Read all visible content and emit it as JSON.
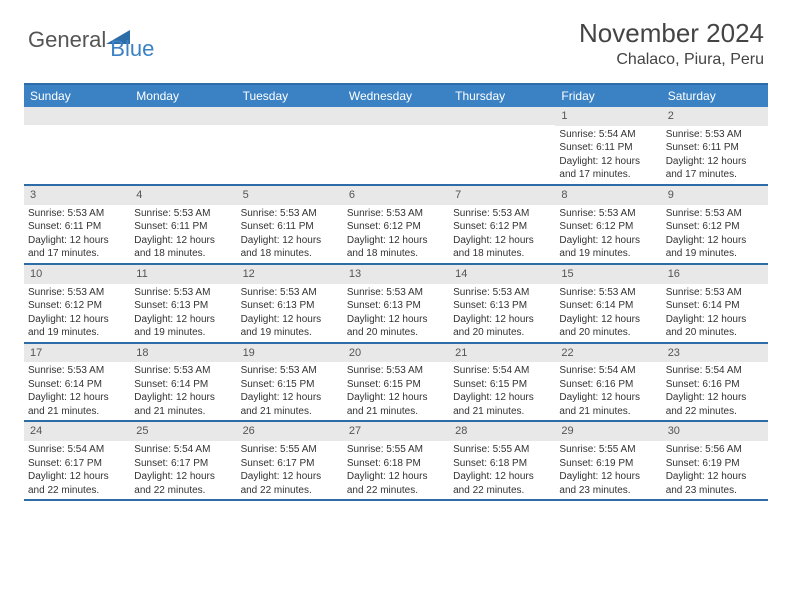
{
  "brand": {
    "part1": "General",
    "part2": "Blue"
  },
  "title": "November 2024",
  "location": "Chalaco, Piura, Peru",
  "colors": {
    "header_blue": "#3b82c4",
    "border_blue": "#2e6ca8",
    "daynum_bg": "#e8e8e8",
    "text": "#333333",
    "title_text": "#444444",
    "background": "#ffffff"
  },
  "dow": [
    "Sunday",
    "Monday",
    "Tuesday",
    "Wednesday",
    "Thursday",
    "Friday",
    "Saturday"
  ],
  "weeks": [
    [
      null,
      null,
      null,
      null,
      null,
      {
        "n": "1",
        "sr": "5:54 AM",
        "ss": "6:11 PM",
        "dl": "12 hours and 17 minutes."
      },
      {
        "n": "2",
        "sr": "5:53 AM",
        "ss": "6:11 PM",
        "dl": "12 hours and 17 minutes."
      }
    ],
    [
      {
        "n": "3",
        "sr": "5:53 AM",
        "ss": "6:11 PM",
        "dl": "12 hours and 17 minutes."
      },
      {
        "n": "4",
        "sr": "5:53 AM",
        "ss": "6:11 PM",
        "dl": "12 hours and 18 minutes."
      },
      {
        "n": "5",
        "sr": "5:53 AM",
        "ss": "6:11 PM",
        "dl": "12 hours and 18 minutes."
      },
      {
        "n": "6",
        "sr": "5:53 AM",
        "ss": "6:12 PM",
        "dl": "12 hours and 18 minutes."
      },
      {
        "n": "7",
        "sr": "5:53 AM",
        "ss": "6:12 PM",
        "dl": "12 hours and 18 minutes."
      },
      {
        "n": "8",
        "sr": "5:53 AM",
        "ss": "6:12 PM",
        "dl": "12 hours and 19 minutes."
      },
      {
        "n": "9",
        "sr": "5:53 AM",
        "ss": "6:12 PM",
        "dl": "12 hours and 19 minutes."
      }
    ],
    [
      {
        "n": "10",
        "sr": "5:53 AM",
        "ss": "6:12 PM",
        "dl": "12 hours and 19 minutes."
      },
      {
        "n": "11",
        "sr": "5:53 AM",
        "ss": "6:13 PM",
        "dl": "12 hours and 19 minutes."
      },
      {
        "n": "12",
        "sr": "5:53 AM",
        "ss": "6:13 PM",
        "dl": "12 hours and 19 minutes."
      },
      {
        "n": "13",
        "sr": "5:53 AM",
        "ss": "6:13 PM",
        "dl": "12 hours and 20 minutes."
      },
      {
        "n": "14",
        "sr": "5:53 AM",
        "ss": "6:13 PM",
        "dl": "12 hours and 20 minutes."
      },
      {
        "n": "15",
        "sr": "5:53 AM",
        "ss": "6:14 PM",
        "dl": "12 hours and 20 minutes."
      },
      {
        "n": "16",
        "sr": "5:53 AM",
        "ss": "6:14 PM",
        "dl": "12 hours and 20 minutes."
      }
    ],
    [
      {
        "n": "17",
        "sr": "5:53 AM",
        "ss": "6:14 PM",
        "dl": "12 hours and 21 minutes."
      },
      {
        "n": "18",
        "sr": "5:53 AM",
        "ss": "6:14 PM",
        "dl": "12 hours and 21 minutes."
      },
      {
        "n": "19",
        "sr": "5:53 AM",
        "ss": "6:15 PM",
        "dl": "12 hours and 21 minutes."
      },
      {
        "n": "20",
        "sr": "5:53 AM",
        "ss": "6:15 PM",
        "dl": "12 hours and 21 minutes."
      },
      {
        "n": "21",
        "sr": "5:54 AM",
        "ss": "6:15 PM",
        "dl": "12 hours and 21 minutes."
      },
      {
        "n": "22",
        "sr": "5:54 AM",
        "ss": "6:16 PM",
        "dl": "12 hours and 21 minutes."
      },
      {
        "n": "23",
        "sr": "5:54 AM",
        "ss": "6:16 PM",
        "dl": "12 hours and 22 minutes."
      }
    ],
    [
      {
        "n": "24",
        "sr": "5:54 AM",
        "ss": "6:17 PM",
        "dl": "12 hours and 22 minutes."
      },
      {
        "n": "25",
        "sr": "5:54 AM",
        "ss": "6:17 PM",
        "dl": "12 hours and 22 minutes."
      },
      {
        "n": "26",
        "sr": "5:55 AM",
        "ss": "6:17 PM",
        "dl": "12 hours and 22 minutes."
      },
      {
        "n": "27",
        "sr": "5:55 AM",
        "ss": "6:18 PM",
        "dl": "12 hours and 22 minutes."
      },
      {
        "n": "28",
        "sr": "5:55 AM",
        "ss": "6:18 PM",
        "dl": "12 hours and 22 minutes."
      },
      {
        "n": "29",
        "sr": "5:55 AM",
        "ss": "6:19 PM",
        "dl": "12 hours and 23 minutes."
      },
      {
        "n": "30",
        "sr": "5:56 AM",
        "ss": "6:19 PM",
        "dl": "12 hours and 23 minutes."
      }
    ]
  ],
  "labels": {
    "sunrise": "Sunrise: ",
    "sunset": "Sunset: ",
    "daylight": "Daylight: "
  }
}
